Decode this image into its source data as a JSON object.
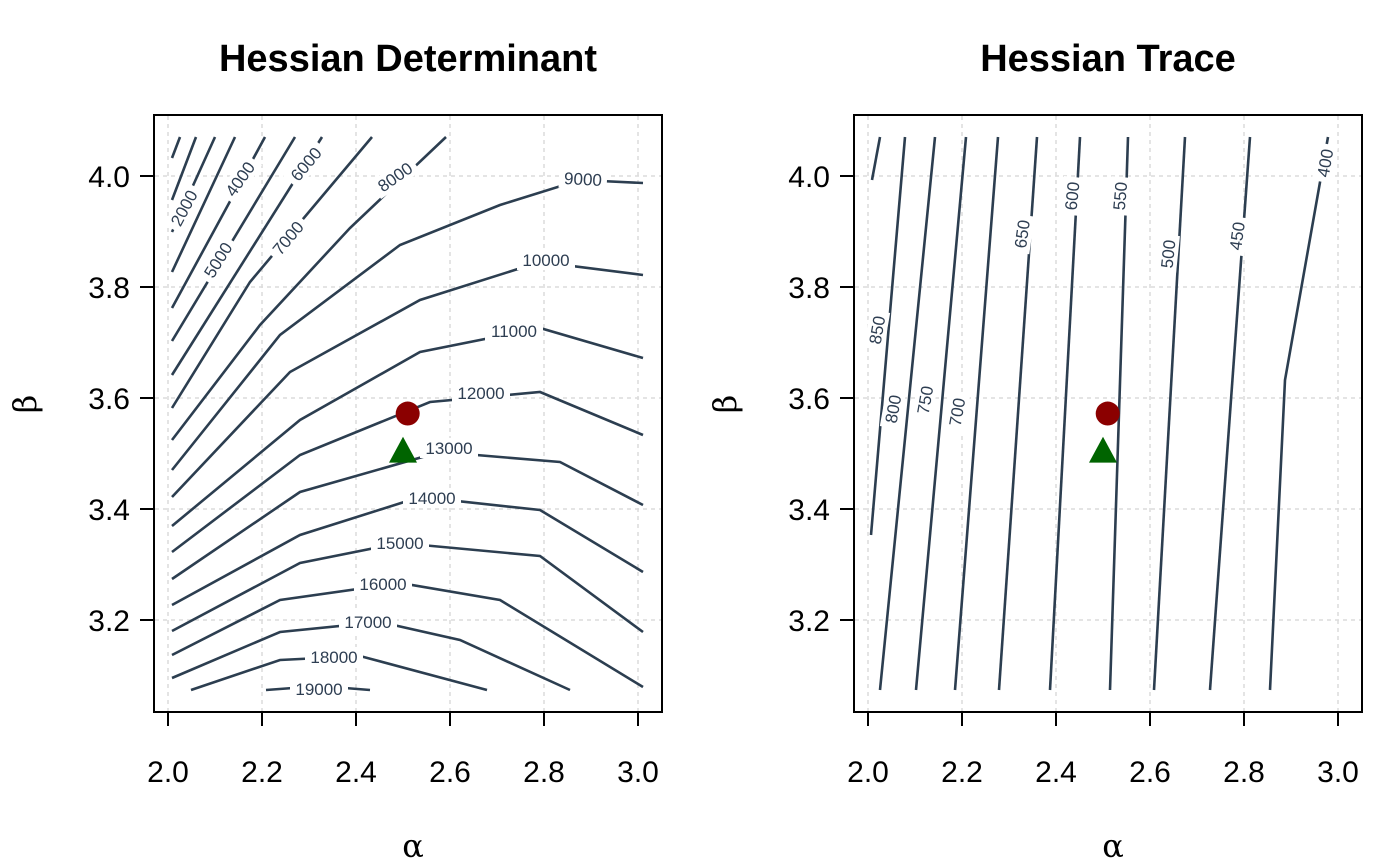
{
  "chart_data": [
    {
      "type": "contour",
      "title": "Hessian Determinant",
      "xlabel": "α",
      "ylabel": "β",
      "xlim": [
        1.97,
        3.04
      ],
      "ylim": [
        3.045,
        4.12
      ],
      "xticks": [
        "2.0",
        "2.2",
        "2.4",
        "2.6",
        "2.8",
        "3.0"
      ],
      "yticks": [
        "3.2",
        "3.4",
        "3.6",
        "3.8",
        "4.0"
      ],
      "grid": true,
      "contour_labels": [
        "2000",
        "4000",
        "6000",
        "5000",
        "7000",
        "8000",
        "9000",
        "10000",
        "11000",
        "12000",
        "13000",
        "14000",
        "15000",
        "16000",
        "17000",
        "18000",
        "19000"
      ],
      "points": [
        {
          "shape": "circle",
          "color": "#8b0000",
          "x": 2.51,
          "y": 3.572
        },
        {
          "shape": "triangle",
          "color": "#006400",
          "x": 2.5,
          "y": 3.505
        }
      ]
    },
    {
      "type": "contour",
      "title": "Hessian Trace",
      "xlabel": "α",
      "ylabel": "β",
      "xlim": [
        1.97,
        3.04
      ],
      "ylim": [
        3.045,
        4.12
      ],
      "xticks": [
        "2.0",
        "2.2",
        "2.4",
        "2.6",
        "2.8",
        "3.0"
      ],
      "yticks": [
        "3.2",
        "3.4",
        "3.6",
        "3.8",
        "4.0"
      ],
      "grid": true,
      "contour_labels": [
        "850",
        "800",
        "750",
        "700",
        "650",
        "600",
        "550",
        "500",
        "450",
        "400"
      ],
      "points": [
        {
          "shape": "circle",
          "color": "#8b0000",
          "x": 2.51,
          "y": 3.572
        },
        {
          "shape": "triangle",
          "color": "#006400",
          "x": 2.5,
          "y": 3.505
        }
      ]
    }
  ]
}
